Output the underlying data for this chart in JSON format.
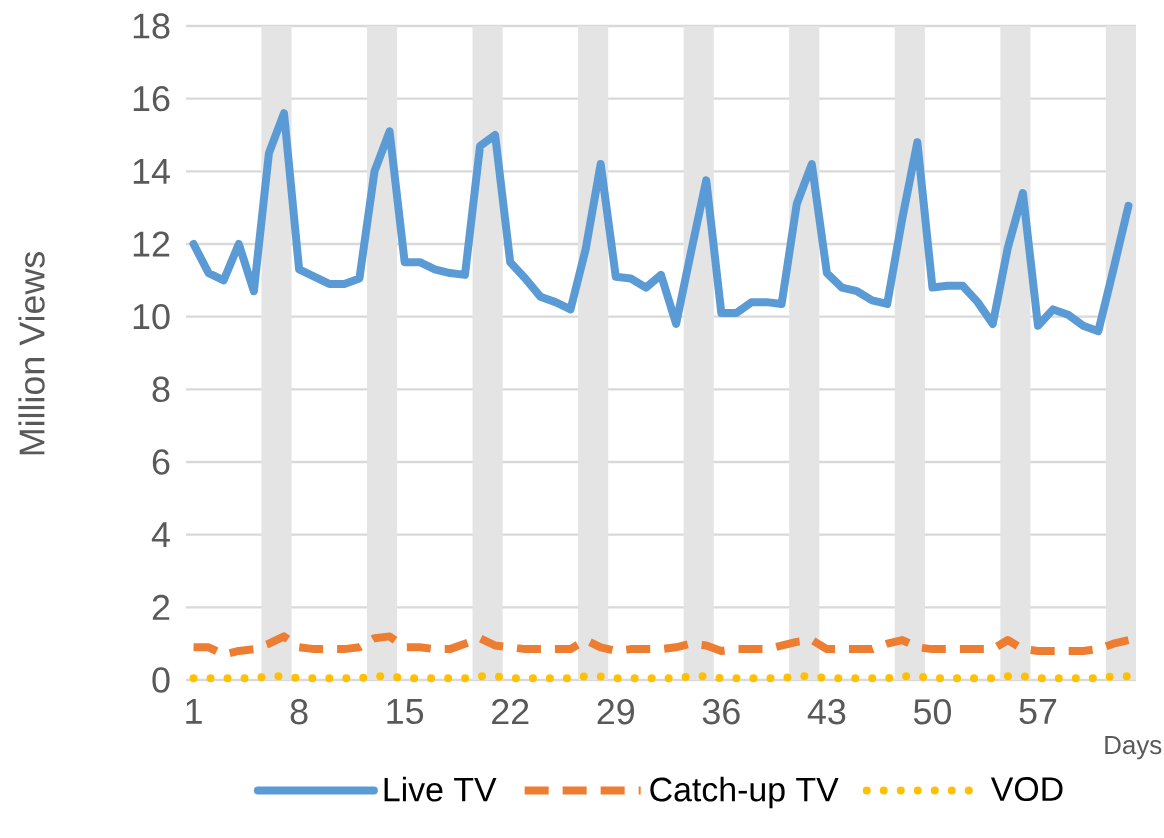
{
  "chart_data": {
    "type": "line",
    "ylabel": "Million Views",
    "xlabel": "Days",
    "x": [
      1,
      2,
      3,
      4,
      5,
      6,
      7,
      8,
      9,
      10,
      11,
      12,
      13,
      14,
      15,
      16,
      17,
      18,
      19,
      20,
      21,
      22,
      23,
      24,
      25,
      26,
      27,
      28,
      29,
      30,
      31,
      32,
      33,
      34,
      35,
      36,
      37,
      38,
      39,
      40,
      41,
      42,
      43,
      44,
      45,
      46,
      47,
      48,
      49,
      50,
      51,
      52,
      53,
      54,
      55,
      56,
      57,
      58,
      59,
      60,
      61,
      62,
      63
    ],
    "xlim": [
      0.5,
      63.5
    ],
    "xticks": [
      1,
      8,
      15,
      22,
      29,
      36,
      43,
      50,
      57
    ],
    "ylim": [
      0,
      18
    ],
    "yticks": [
      0,
      2,
      4,
      6,
      8,
      10,
      12,
      14,
      16,
      18
    ],
    "grid": "y",
    "legend": "bottom",
    "bands": [
      {
        "axis": "x",
        "from": 5.5,
        "to": 7.5,
        "color": "#e4e4e4"
      },
      {
        "axis": "x",
        "from": 12.5,
        "to": 14.5,
        "color": "#e4e4e4"
      },
      {
        "axis": "x",
        "from": 19.5,
        "to": 21.5,
        "color": "#e4e4e4"
      },
      {
        "axis": "x",
        "from": 26.5,
        "to": 28.5,
        "color": "#e4e4e4"
      },
      {
        "axis": "x",
        "from": 33.5,
        "to": 35.5,
        "color": "#e4e4e4"
      },
      {
        "axis": "x",
        "from": 40.5,
        "to": 42.5,
        "color": "#e4e4e4"
      },
      {
        "axis": "x",
        "from": 47.5,
        "to": 49.5,
        "color": "#e4e4e4"
      },
      {
        "axis": "x",
        "from": 54.5,
        "to": 56.5,
        "color": "#e4e4e4"
      },
      {
        "axis": "x",
        "from": 61.5,
        "to": 63.5,
        "color": "#e4e4e4"
      }
    ],
    "series": [
      {
        "name": "Live TV",
        "color": "#5b9bd5",
        "line_style": "solid",
        "values": [
          12.0,
          11.2,
          11.0,
          12.0,
          10.7,
          14.5,
          15.6,
          11.3,
          11.1,
          10.9,
          10.9,
          11.05,
          14.0,
          15.1,
          11.5,
          11.5,
          11.3,
          11.2,
          11.15,
          14.7,
          15.0,
          11.5,
          11.05,
          10.55,
          10.4,
          10.2,
          11.85,
          14.2,
          11.1,
          11.05,
          10.8,
          11.15,
          9.8,
          11.8,
          13.75,
          10.1,
          10.1,
          10.4,
          10.4,
          10.35,
          13.1,
          14.2,
          11.2,
          10.8,
          10.7,
          10.45,
          10.35,
          12.7,
          14.8,
          10.8,
          10.85,
          10.85,
          10.4,
          9.8,
          11.9,
          13.4,
          9.75,
          10.2,
          10.05,
          9.75,
          9.6,
          11.3,
          13.05
        ]
      },
      {
        "name": "Catch-up TV",
        "color": "#ed7d31",
        "line_style": "dashed",
        "values": [
          0.9,
          0.9,
          0.7,
          0.8,
          0.85,
          1.0,
          1.2,
          0.9,
          0.85,
          0.85,
          0.85,
          0.9,
          1.15,
          1.2,
          0.9,
          0.9,
          0.85,
          0.85,
          1.0,
          1.15,
          0.95,
          0.9,
          0.85,
          0.85,
          0.85,
          0.85,
          1.1,
          0.9,
          0.8,
          0.85,
          0.85,
          0.85,
          0.9,
          1.0,
          0.95,
          0.8,
          0.85,
          0.85,
          0.85,
          0.95,
          1.05,
          1.1,
          0.85,
          0.85,
          0.85,
          0.85,
          1.0,
          1.1,
          0.9,
          0.85,
          0.85,
          0.85,
          0.85,
          0.85,
          1.1,
          0.85,
          0.8,
          0.8,
          0.8,
          0.8,
          0.85,
          1.0,
          1.1
        ]
      },
      {
        "name": "VOD",
        "color": "#ffc000",
        "line_style": "dotted",
        "values": [
          0.05,
          0.05,
          0.05,
          0.05,
          0.05,
          0.1,
          0.1,
          0.05,
          0.05,
          0.05,
          0.05,
          0.05,
          0.1,
          0.1,
          0.05,
          0.05,
          0.05,
          0.05,
          0.05,
          0.1,
          0.1,
          0.05,
          0.05,
          0.05,
          0.05,
          0.05,
          0.1,
          0.1,
          0.05,
          0.05,
          0.05,
          0.05,
          0.05,
          0.1,
          0.1,
          0.05,
          0.05,
          0.05,
          0.05,
          0.05,
          0.1,
          0.1,
          0.05,
          0.05,
          0.05,
          0.05,
          0.05,
          0.1,
          0.1,
          0.05,
          0.05,
          0.05,
          0.05,
          0.05,
          0.1,
          0.1,
          0.05,
          0.05,
          0.05,
          0.05,
          0.05,
          0.1,
          0.1
        ]
      }
    ]
  }
}
